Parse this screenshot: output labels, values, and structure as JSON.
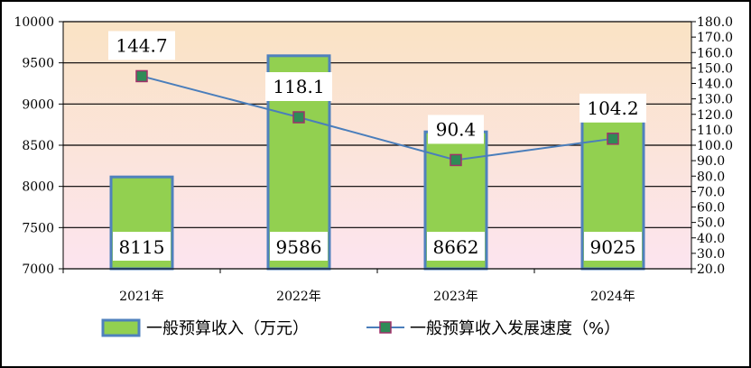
{
  "chart_data": {
    "type": "bar",
    "categories": [
      "2021年",
      "2022年",
      "2023年",
      "2024年"
    ],
    "series": [
      {
        "name": "一般预算收入（万元）",
        "type": "bar",
        "axis": "left",
        "values": [
          8115,
          9586,
          8662,
          9025
        ],
        "labels": [
          "8115",
          "9586",
          "8662",
          "9025"
        ]
      },
      {
        "name": "一般预算收入发展速度（%）",
        "type": "line",
        "axis": "right",
        "values": [
          144.7,
          118.1,
          90.4,
          104.2
        ],
        "labels": [
          "144.7",
          "118.1",
          "90.4",
          "104.2"
        ]
      }
    ],
    "y_left": {
      "lim": [
        7000,
        10000
      ],
      "ticks": [
        "7000",
        "7500",
        "8000",
        "8500",
        "9000",
        "9500",
        "10000"
      ]
    },
    "y_right": {
      "lim": [
        20,
        180
      ],
      "ticks": [
        "20.0",
        "30.0",
        "40.0",
        "50.0",
        "60.0",
        "70.0",
        "80.0",
        "90.0",
        "100.0",
        "110.0",
        "120.0",
        "130.0",
        "140.0",
        "150.0",
        "160.0",
        "170.0",
        "180.0"
      ]
    },
    "grid": true,
    "legend_position": "bottom",
    "colors": {
      "bar_fill": "#92d050",
      "bar_border": "#4f81bd",
      "line": "#4a7ebb",
      "marker_fill": "#2e8b57",
      "marker_border": "#a0306a",
      "bg_top": "#fae3c4",
      "bg_bottom": "#fce4ef"
    }
  }
}
